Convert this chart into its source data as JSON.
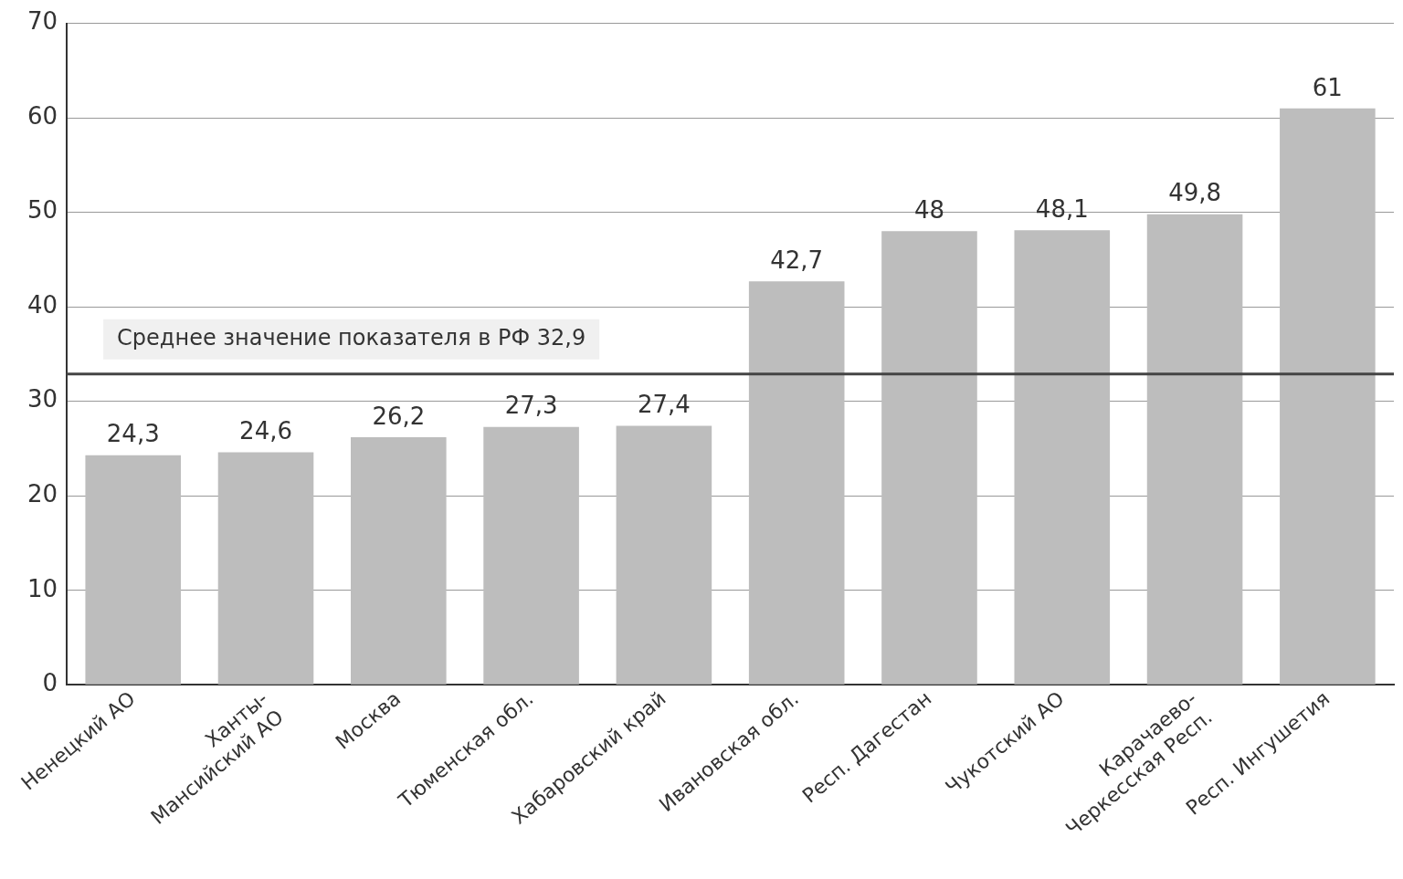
{
  "chart_data": {
    "type": "bar",
    "categories": [
      "Ненецкий АО",
      "Ханты-\nМансийский АО",
      "Москва",
      "Тюменская обл.",
      "Хабаровский край",
      "Ивановская обл.",
      "Респ. Дагестан",
      "Чукотский АО",
      "Карачаево-\nЧеркесская Респ.",
      "Респ. Ингушетия"
    ],
    "values": [
      24.3,
      24.6,
      26.2,
      27.3,
      27.4,
      42.7,
      48,
      48.1,
      49.8,
      61
    ],
    "value_labels": [
      "24,3",
      "24,6",
      "26,2",
      "27,3",
      "27,4",
      "42,7",
      "48",
      "48,1",
      "49,8",
      "61"
    ],
    "color": "#bdbdbd",
    "ylim": [
      0,
      70
    ],
    "yticks": [
      0,
      10,
      20,
      30,
      40,
      50,
      60,
      70
    ],
    "grid": "y",
    "ref_lines": [
      {
        "axis": "y",
        "value": 32.9,
        "label": "Среднее значение показателя в РФ 32,9",
        "color": "#444444"
      }
    ]
  }
}
